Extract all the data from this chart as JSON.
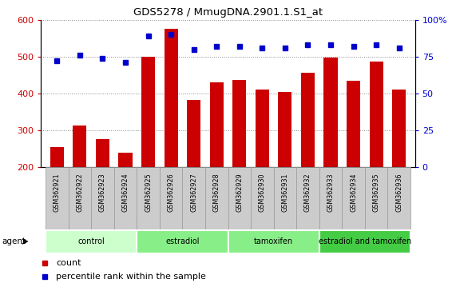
{
  "title": "GDS5278 / MmugDNA.2901.1.S1_at",
  "samples": [
    "GSM362921",
    "GSM362922",
    "GSM362923",
    "GSM362924",
    "GSM362925",
    "GSM362926",
    "GSM362927",
    "GSM362928",
    "GSM362929",
    "GSM362930",
    "GSM362931",
    "GSM362932",
    "GSM362933",
    "GSM362934",
    "GSM362935",
    "GSM362936"
  ],
  "counts": [
    253,
    312,
    275,
    238,
    500,
    575,
    383,
    430,
    437,
    410,
    403,
    457,
    497,
    435,
    487,
    410
  ],
  "percentile_ranks": [
    72,
    76,
    74,
    71,
    89,
    90,
    80,
    82,
    82,
    81,
    81,
    83,
    83,
    82,
    83,
    81
  ],
  "bar_color": "#cc0000",
  "dot_color": "#0000cc",
  "ylim_left": [
    200,
    600
  ],
  "ylim_right": [
    0,
    100
  ],
  "yticks_left": [
    200,
    300,
    400,
    500,
    600
  ],
  "yticks_right": [
    0,
    25,
    50,
    75,
    100
  ],
  "groups": [
    {
      "label": "control",
      "start": 0,
      "end": 3,
      "color": "#ccffcc"
    },
    {
      "label": "estradiol",
      "start": 4,
      "end": 7,
      "color": "#88ee88"
    },
    {
      "label": "tamoxifen",
      "start": 8,
      "end": 11,
      "color": "#88ee88"
    },
    {
      "label": "estradiol and tamoxifen",
      "start": 12,
      "end": 15,
      "color": "#44cc44"
    }
  ],
  "agent_label": "agent",
  "legend_count": "count",
  "legend_pct": "percentile rank within the sample",
  "grid_color": "#888888",
  "bar_width": 0.6,
  "sample_bg_color": "#cccccc",
  "sample_border_color": "#999999"
}
